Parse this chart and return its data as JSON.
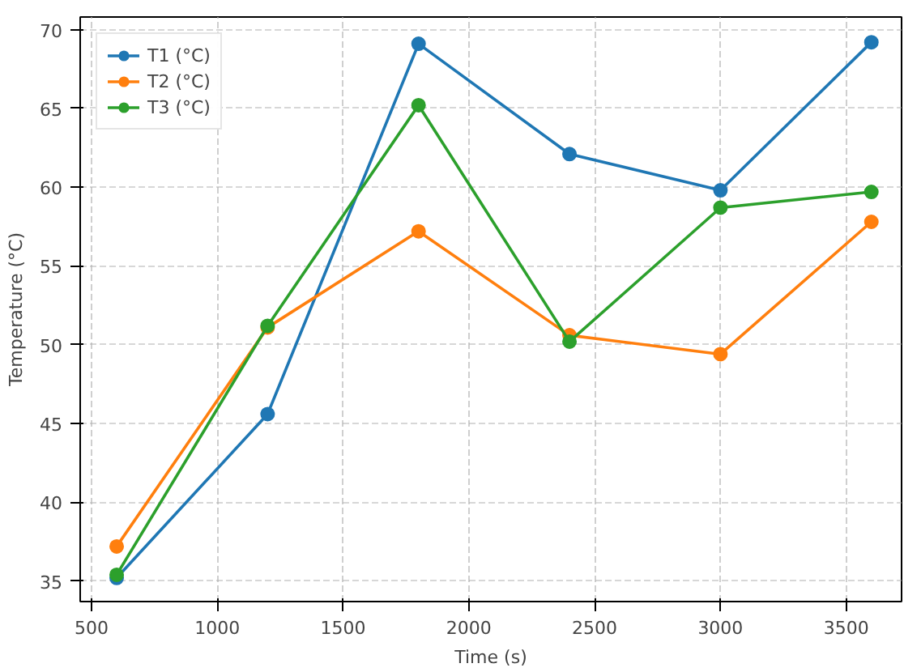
{
  "chart_data": {
    "type": "line",
    "xlabel": "Time (s)",
    "ylabel": "Temperature (°C)",
    "x": [
      600,
      1200,
      1800,
      2400,
      3000,
      3600
    ],
    "series": [
      {
        "name": "T1 (°C)",
        "color": "#1f77b4",
        "values": [
          35.2,
          45.6,
          69.1,
          62.1,
          59.8,
          69.2
        ]
      },
      {
        "name": "T2 (°C)",
        "color": "#ff7f0e",
        "values": [
          37.2,
          51.1,
          57.2,
          50.6,
          49.4,
          57.8
        ]
      },
      {
        "name": "T3 (°C)",
        "color": "#2ca02c",
        "values": [
          35.4,
          51.2,
          65.2,
          50.2,
          58.7,
          59.7
        ]
      }
    ],
    "xlim": [
      455,
      3720
    ],
    "ylim": [
      33.7,
      70.8
    ],
    "xticks": [
      500,
      1000,
      1500,
      2000,
      2500,
      3000,
      3500
    ],
    "yticks": [
      35,
      40,
      45,
      50,
      55,
      60,
      65,
      70
    ],
    "grid": true,
    "legend": "top left",
    "marker": "circle",
    "line_style": "solid"
  }
}
